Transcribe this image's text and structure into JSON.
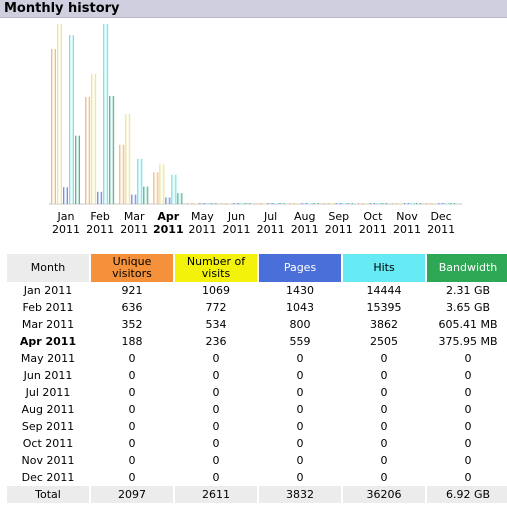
{
  "header": {
    "title": "Monthly history"
  },
  "colors": {
    "unique": "#e8a24b",
    "visits": "#e4d878",
    "pages": "#3a5ed6",
    "hits": "#40d6dc",
    "bandwidth": "#13966a",
    "header_bg": "#cfcfe0"
  },
  "chart_data": {
    "type": "bar",
    "categories": [
      "Jan",
      "Feb",
      "Mar",
      "Apr",
      "May",
      "Jun",
      "Jul",
      "Aug",
      "Sep",
      "Oct",
      "Nov",
      "Dec"
    ],
    "year": "2011",
    "current_month_index": 3,
    "series": [
      {
        "key": "unique",
        "values": [
          921,
          636,
          352,
          188,
          0,
          0,
          0,
          0,
          0,
          0,
          0,
          0
        ]
      },
      {
        "key": "visits",
        "values": [
          1069,
          772,
          534,
          236,
          0,
          0,
          0,
          0,
          0,
          0,
          0,
          0
        ]
      },
      {
        "key": "pages",
        "values": [
          1430,
          1043,
          800,
          559,
          0,
          0,
          0,
          0,
          0,
          0,
          0,
          0
        ]
      },
      {
        "key": "hits",
        "values": [
          14444,
          15395,
          3862,
          2505,
          0,
          0,
          0,
          0,
          0,
          0,
          0,
          0
        ]
      },
      {
        "key": "bandwidth",
        "values_mb": [
          2365,
          3738,
          605.41,
          375.95,
          0,
          0,
          0,
          0,
          0,
          0,
          0,
          0
        ]
      }
    ]
  },
  "table": {
    "headers": {
      "month": "Month",
      "unique_l1": "Unique",
      "unique_l2": "visitors",
      "visits_l1": "Number of",
      "visits_l2": "visits",
      "pages": "Pages",
      "hits": "Hits",
      "bandwidth": "Bandwidth"
    },
    "rows": [
      {
        "month": "Jan 2011",
        "unique": "921",
        "visits": "1069",
        "pages": "1430",
        "hits": "14444",
        "bandwidth": "2.31 GB"
      },
      {
        "month": "Feb 2011",
        "unique": "636",
        "visits": "772",
        "pages": "1043",
        "hits": "15395",
        "bandwidth": "3.65 GB"
      },
      {
        "month": "Mar 2011",
        "unique": "352",
        "visits": "534",
        "pages": "800",
        "hits": "3862",
        "bandwidth": "605.41 MB"
      },
      {
        "month": "Apr 2011",
        "unique": "188",
        "visits": "236",
        "pages": "559",
        "hits": "2505",
        "bandwidth": "375.95 MB"
      },
      {
        "month": "May 2011",
        "unique": "0",
        "visits": "0",
        "pages": "0",
        "hits": "0",
        "bandwidth": "0"
      },
      {
        "month": "Jun 2011",
        "unique": "0",
        "visits": "0",
        "pages": "0",
        "hits": "0",
        "bandwidth": "0"
      },
      {
        "month": "Jul 2011",
        "unique": "0",
        "visits": "0",
        "pages": "0",
        "hits": "0",
        "bandwidth": "0"
      },
      {
        "month": "Aug 2011",
        "unique": "0",
        "visits": "0",
        "pages": "0",
        "hits": "0",
        "bandwidth": "0"
      },
      {
        "month": "Sep 2011",
        "unique": "0",
        "visits": "0",
        "pages": "0",
        "hits": "0",
        "bandwidth": "0"
      },
      {
        "month": "Oct 2011",
        "unique": "0",
        "visits": "0",
        "pages": "0",
        "hits": "0",
        "bandwidth": "0"
      },
      {
        "month": "Nov 2011",
        "unique": "0",
        "visits": "0",
        "pages": "0",
        "hits": "0",
        "bandwidth": "0"
      },
      {
        "month": "Dec 2011",
        "unique": "0",
        "visits": "0",
        "pages": "0",
        "hits": "0",
        "bandwidth": "0"
      }
    ],
    "total": {
      "month": "Total",
      "unique": "2097",
      "visits": "2611",
      "pages": "3832",
      "hits": "36206",
      "bandwidth": "6.92 GB"
    }
  }
}
